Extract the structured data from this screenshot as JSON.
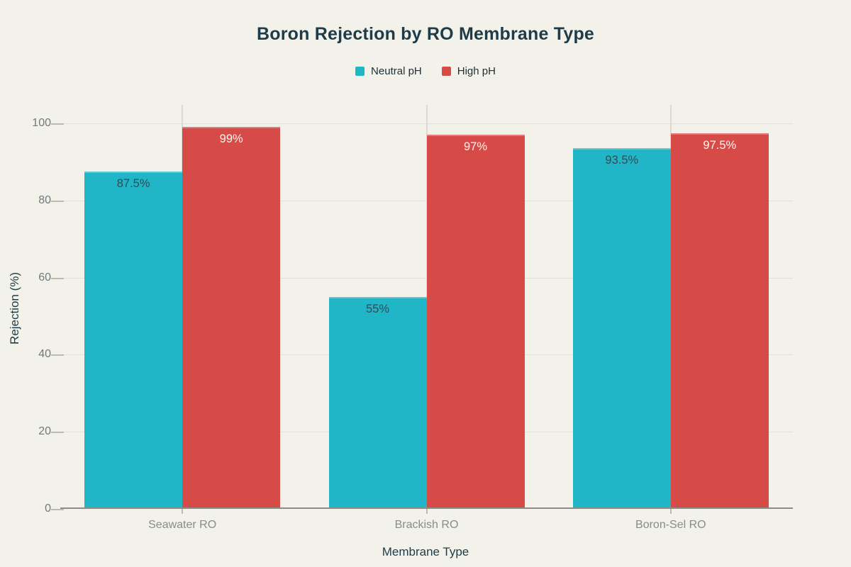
{
  "page": {
    "background": "#f2f1ea"
  },
  "colors": {
    "title": "#1d3c47",
    "axis_title": "#1d3c47",
    "tick_label": "#6f7a7d",
    "category_label": "#878c8d",
    "gridline": "#e2e0d8",
    "axis_line": "#8e8e88",
    "series_neutral": "#21b5c8",
    "series_high": "#d64b47"
  },
  "chart_data": {
    "type": "bar",
    "title": "Boron Rejection by RO Membrane Type",
    "xlabel": "Membrane Type",
    "ylabel": "Rejection (%)",
    "categories": [
      "Seawater RO",
      "Brackish RO",
      "Boron-Sel RO"
    ],
    "series": [
      {
        "name": "Neutral pH",
        "color": "#21b5c8",
        "label_color": "#2f4d55",
        "values": [
          87.5,
          55,
          93.5
        ],
        "labels": [
          "87.5%",
          "55%",
          "93.5%"
        ]
      },
      {
        "name": "High pH",
        "color": "#d64b47",
        "label_color": "#f8f5ee",
        "values": [
          99,
          97,
          97.5
        ],
        "labels": [
          "99%",
          "97%",
          "97.5%"
        ]
      }
    ],
    "value_suffix": "%",
    "yticks": [
      0,
      20,
      40,
      60,
      80,
      100
    ],
    "ylim": [
      0,
      100
    ],
    "grid": true,
    "legend_position": "top"
  }
}
